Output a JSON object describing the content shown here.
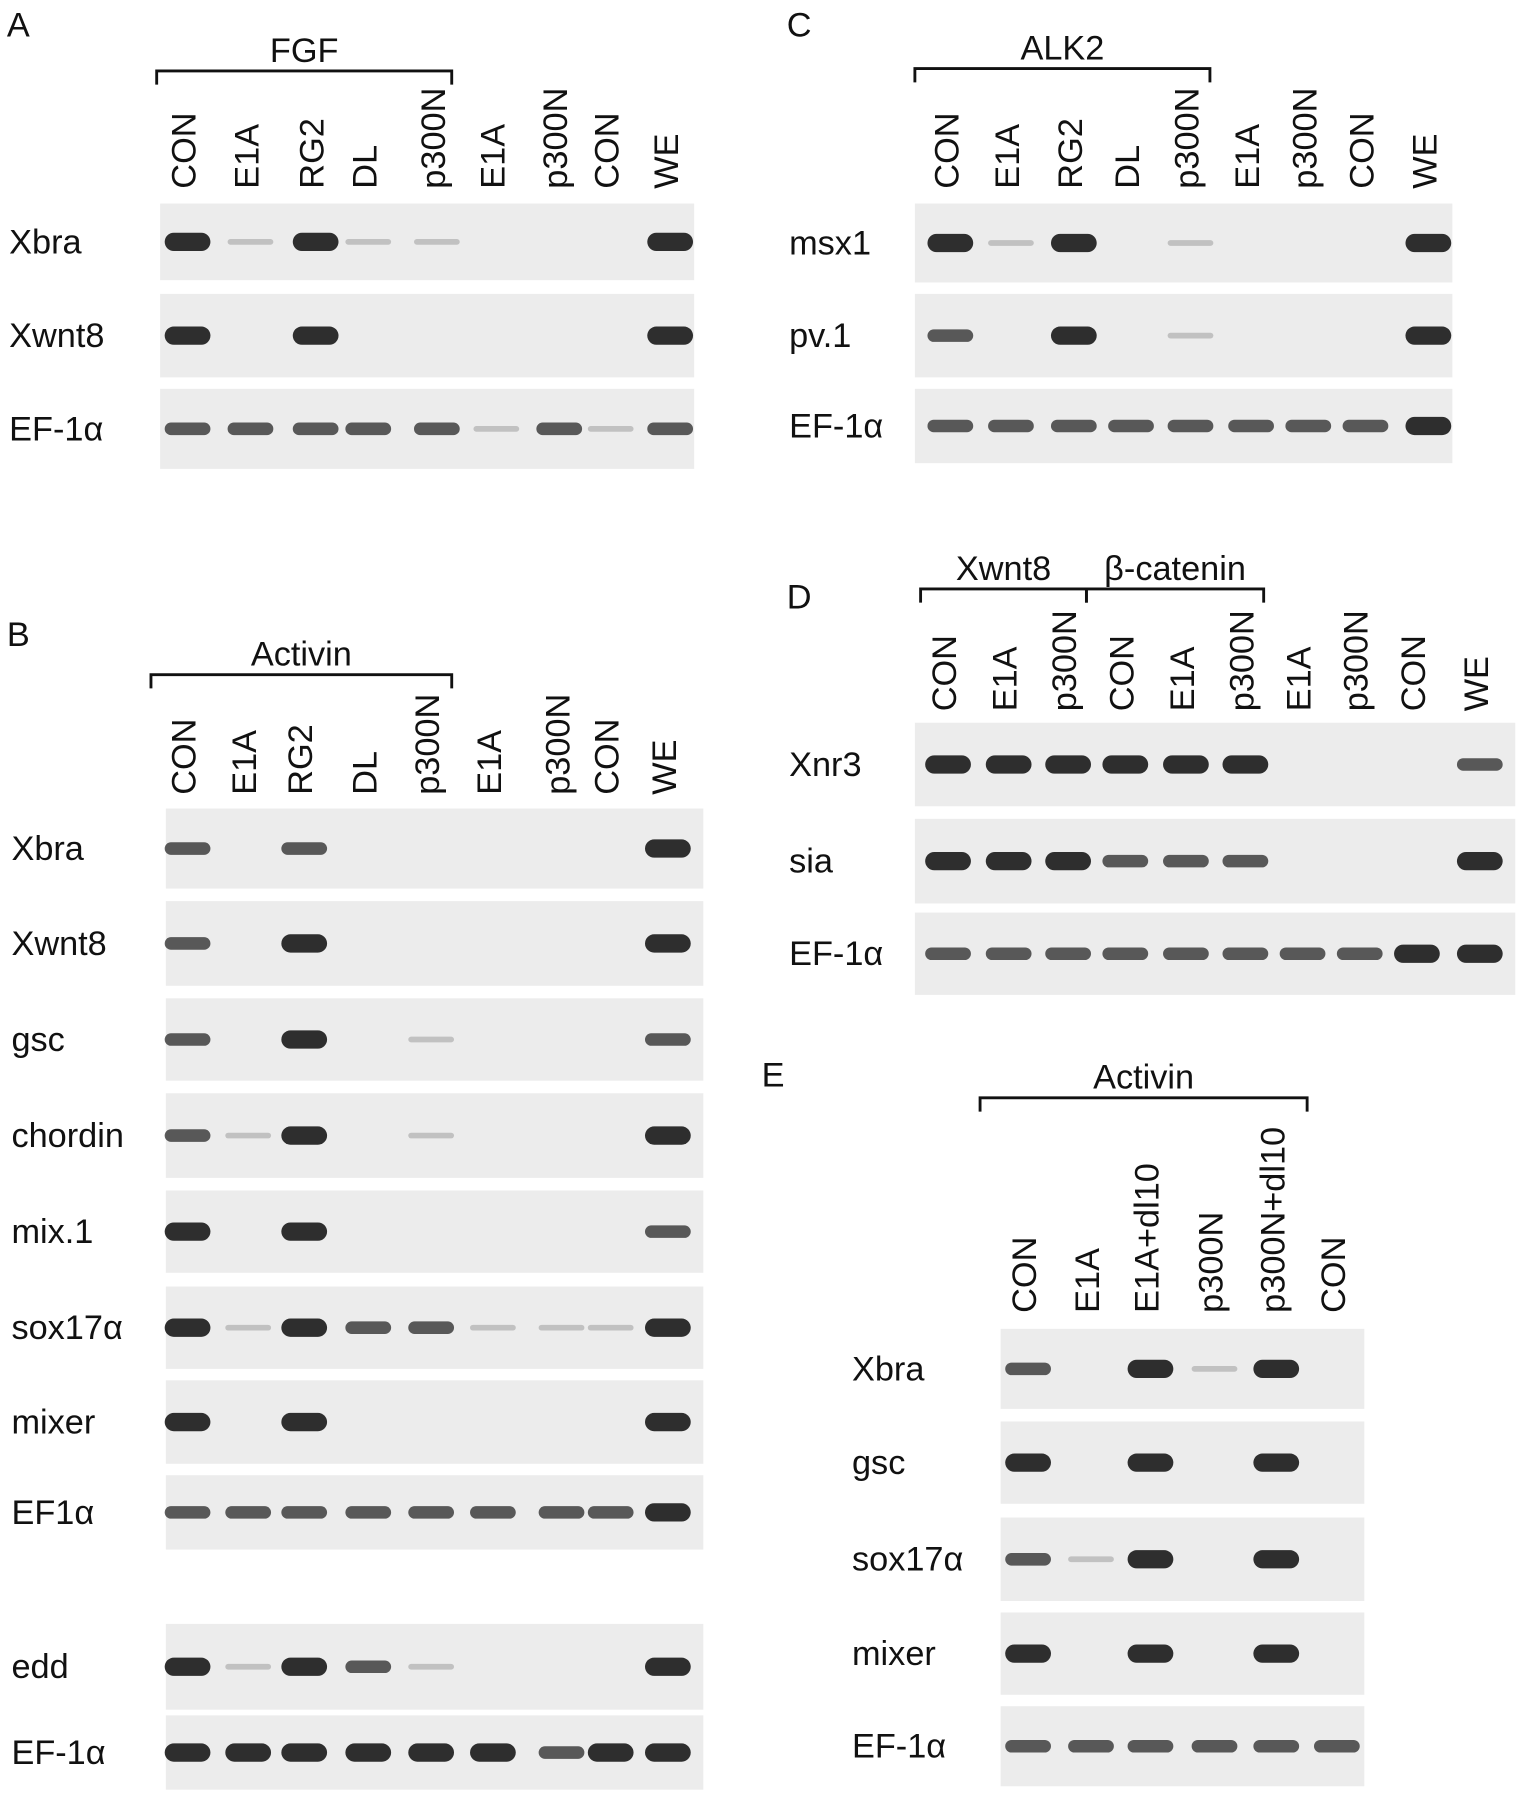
{
  "panels": [
    {
      "label": "A",
      "groups": [
        "FGF"
      ],
      "lanes": [
        "CON",
        "E1A",
        "RG2",
        "DL",
        "p300N",
        "E1A",
        "p300N",
        "CON",
        "WE"
      ],
      "rows": [
        "Xbra",
        "Xwnt8",
        "EF-1α"
      ]
    },
    {
      "label": "B",
      "groups": [
        "Activin"
      ],
      "lanes": [
        "CON",
        "E1A",
        "RG2",
        "DL",
        "p300N",
        "E1A",
        "p300N",
        "CON",
        "WE"
      ],
      "rows": [
        "Xbra",
        "Xwnt8",
        "gsc",
        "chordin",
        "mix.1",
        "sox17α",
        "mixer",
        "EF1α",
        "edd",
        "EF-1α"
      ]
    },
    {
      "label": "C",
      "groups": [
        "ALK2"
      ],
      "lanes": [
        "CON",
        "E1A",
        "RG2",
        "DL",
        "p300N",
        "E1A",
        "p300N",
        "CON",
        "WE"
      ],
      "rows": [
        "msx1",
        "pv.1",
        "EF-1α"
      ]
    },
    {
      "label": "D",
      "groups": [
        "Xwnt8",
        "β-catenin"
      ],
      "lanes": [
        "CON",
        "E1A",
        "p300N",
        "CON",
        "E1A",
        "p300N",
        "E1A",
        "p300N",
        "CON",
        "WE"
      ],
      "rows": [
        "Xnr3",
        "sia",
        "EF-1α"
      ]
    },
    {
      "label": "E",
      "groups": [
        "Activin"
      ],
      "lanes": [
        "CON",
        "E1A",
        "E1A+dl10",
        "p300N",
        "p300N+dl10",
        "CON"
      ],
      "rows": [
        "Xbra",
        "gsc",
        "sox17α",
        "mixer",
        "EF-1α"
      ]
    }
  ]
}
